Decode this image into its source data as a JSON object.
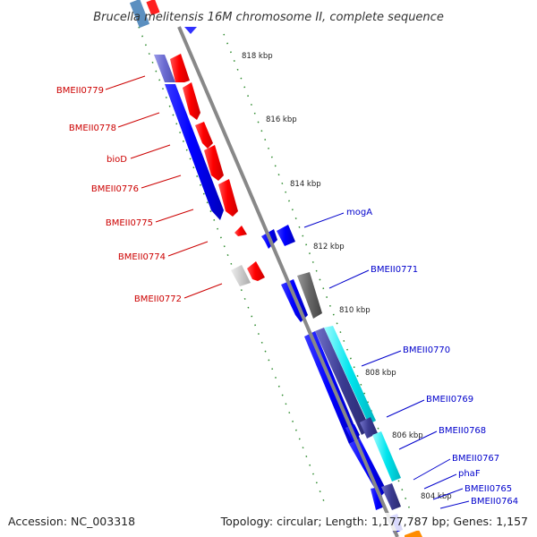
{
  "title": "Brucella melitensis 16M chromosome II, complete sequence",
  "footer": {
    "accession": "Accession: NC_003318",
    "summary": "Topology: circular; Length: 1,177,787 bp; Genes: 1,157"
  },
  "ticks": [
    "818 kbp",
    "816 kbp",
    "814 kbp",
    "812 kbp",
    "810 kbp",
    "808 kbp",
    "806 kbp",
    "804 kbp"
  ],
  "colors": {
    "forward_cds": "#ff0000",
    "reverse_cds": "#0000ff",
    "label_forward": "#cc0000",
    "label_reverse": "#0000cc",
    "backbone": "#888888",
    "tick_dash": "#2e8b2e",
    "cyan_track": "#00e5ee",
    "gray_feature": "#666666",
    "orange_feature": "#ff8c00"
  },
  "left_labels": [
    "BMEII0779",
    "BMEII0778",
    "bioD",
    "BMEII0776",
    "BMEII0775",
    "BMEII0774",
    "BMEII0772"
  ],
  "right_labels": [
    "mogA",
    "BMEII0771",
    "BMEII0770",
    "BMEII0769",
    "BMEII0768",
    "BMEII0767",
    "phaF",
    "BMEII0765",
    "BMEII0764"
  ]
}
